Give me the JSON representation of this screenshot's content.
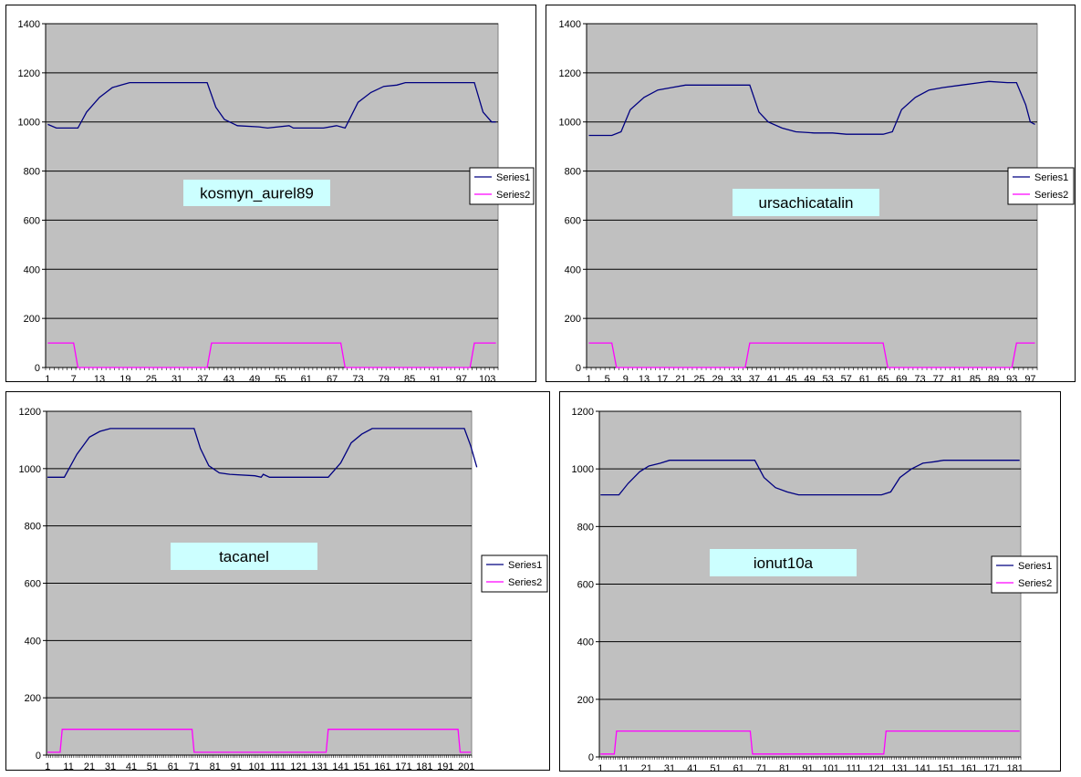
{
  "chart_data": [
    {
      "type": "line",
      "title": "kosmyn_aurel89",
      "ylim": [
        0,
        1400
      ],
      "y_ticks": [
        0,
        200,
        400,
        600,
        800,
        1000,
        1200,
        1400
      ],
      "x_ticks": [
        "1",
        "7",
        "13",
        "19",
        "25",
        "31",
        "37",
        "43",
        "49",
        "55",
        "61",
        "67",
        "73",
        "79",
        "85",
        "91",
        "97",
        "103"
      ],
      "x_count": 105,
      "grid": "horizontal",
      "legend": "right",
      "series": [
        {
          "name": "Series1",
          "color": "#000080",
          "points": [
            [
              1,
              990
            ],
            [
              3,
              975
            ],
            [
              8,
              975
            ],
            [
              10,
              1040
            ],
            [
              13,
              1100
            ],
            [
              16,
              1140
            ],
            [
              18,
              1150
            ],
            [
              20,
              1160
            ],
            [
              38,
              1160
            ],
            [
              40,
              1060
            ],
            [
              42,
              1010
            ],
            [
              45,
              985
            ],
            [
              50,
              980
            ],
            [
              52,
              975
            ],
            [
              57,
              985
            ],
            [
              58,
              975
            ],
            [
              65,
              975
            ],
            [
              68,
              985
            ],
            [
              70,
              975
            ],
            [
              73,
              1080
            ],
            [
              76,
              1120
            ],
            [
              79,
              1145
            ],
            [
              82,
              1150
            ],
            [
              84,
              1160
            ],
            [
              100,
              1160
            ],
            [
              102,
              1040
            ],
            [
              104,
              1000
            ],
            [
              105,
              1000
            ]
          ]
        },
        {
          "name": "Series2",
          "color": "#FF00FF",
          "points": [
            [
              1,
              100
            ],
            [
              7,
              100
            ],
            [
              8,
              0
            ],
            [
              38,
              0
            ],
            [
              39,
              100
            ],
            [
              69,
              100
            ],
            [
              70,
              0
            ],
            [
              99,
              0
            ],
            [
              100,
              100
            ],
            [
              105,
              100
            ]
          ]
        }
      ]
    },
    {
      "type": "line",
      "title": "ursachicatalin",
      "ylim": [
        0,
        1400
      ],
      "y_ticks": [
        0,
        200,
        400,
        600,
        800,
        1000,
        1200,
        1400
      ],
      "x_ticks": [
        "1",
        "5",
        "9",
        "13",
        "17",
        "21",
        "25",
        "29",
        "33",
        "37",
        "41",
        "45",
        "49",
        "53",
        "57",
        "61",
        "65",
        "69",
        "73",
        "77",
        "81",
        "85",
        "89",
        "93",
        "97"
      ],
      "x_count": 98,
      "grid": "horizontal",
      "legend": "right",
      "series": [
        {
          "name": "Series1",
          "color": "#000080",
          "points": [
            [
              1,
              945
            ],
            [
              6,
              945
            ],
            [
              8,
              960
            ],
            [
              10,
              1050
            ],
            [
              13,
              1100
            ],
            [
              16,
              1130
            ],
            [
              19,
              1140
            ],
            [
              22,
              1150
            ],
            [
              36,
              1150
            ],
            [
              38,
              1040
            ],
            [
              40,
              1000
            ],
            [
              43,
              975
            ],
            [
              46,
              960
            ],
            [
              50,
              955
            ],
            [
              54,
              955
            ],
            [
              57,
              950
            ],
            [
              61,
              950
            ],
            [
              65,
              950
            ],
            [
              67,
              960
            ],
            [
              69,
              1050
            ],
            [
              72,
              1100
            ],
            [
              75,
              1130
            ],
            [
              78,
              1140
            ],
            [
              82,
              1150
            ],
            [
              86,
              1160
            ],
            [
              88,
              1165
            ],
            [
              92,
              1160
            ],
            [
              94,
              1160
            ],
            [
              96,
              1070
            ],
            [
              97,
              1000
            ],
            [
              98,
              990
            ]
          ]
        },
        {
          "name": "Series2",
          "color": "#FF00FF",
          "points": [
            [
              1,
              100
            ],
            [
              6,
              100
            ],
            [
              7,
              0
            ],
            [
              35,
              0
            ],
            [
              36,
              100
            ],
            [
              65,
              100
            ],
            [
              66,
              0
            ],
            [
              93,
              0
            ],
            [
              94,
              100
            ],
            [
              98,
              100
            ]
          ]
        }
      ]
    },
    {
      "type": "line",
      "title": "tacanel",
      "ylim": [
        0,
        1200
      ],
      "y_ticks": [
        0,
        200,
        400,
        600,
        800,
        1000,
        1200
      ],
      "x_ticks": [
        "1",
        "11",
        "21",
        "31",
        "41",
        "51",
        "61",
        "71",
        "81",
        "91",
        "101",
        "111",
        "121",
        "131",
        "141",
        "151",
        "161",
        "171",
        "181",
        "191",
        "201"
      ],
      "x_count": 203,
      "grid": "horizontal",
      "legend": "right",
      "series": [
        {
          "name": "Series1",
          "color": "#000080",
          "points": [
            [
              1,
              970
            ],
            [
              9,
              970
            ],
            [
              15,
              1050
            ],
            [
              21,
              1110
            ],
            [
              26,
              1130
            ],
            [
              31,
              1140
            ],
            [
              71,
              1140
            ],
            [
              74,
              1070
            ],
            [
              78,
              1010
            ],
            [
              83,
              985
            ],
            [
              88,
              980
            ],
            [
              100,
              975
            ],
            [
              103,
              970
            ],
            [
              104,
              980
            ],
            [
              107,
              970
            ],
            [
              135,
              970
            ],
            [
              141,
              1020
            ],
            [
              146,
              1090
            ],
            [
              151,
              1120
            ],
            [
              156,
              1140
            ],
            [
              200,
              1140
            ],
            [
              203,
              1080
            ],
            [
              206,
              1005
            ]
          ]
        },
        {
          "name": "Series2",
          "color": "#FF00FF",
          "points": [
            [
              1,
              10
            ],
            [
              7,
              10
            ],
            [
              8,
              90
            ],
            [
              70,
              90
            ],
            [
              71,
              10
            ],
            [
              134,
              10
            ],
            [
              135,
              90
            ],
            [
              197,
              90
            ],
            [
              198,
              10
            ],
            [
              203,
              10
            ]
          ]
        }
      ]
    },
    {
      "type": "line",
      "title": "ionut10a",
      "ylim": [
        0,
        1200
      ],
      "y_ticks": [
        0,
        200,
        400,
        600,
        800,
        1000,
        1200
      ],
      "x_ticks": [
        "1",
        "11",
        "21",
        "31",
        "41",
        "51",
        "61",
        "71",
        "81",
        "91",
        "101",
        "111",
        "121",
        "131",
        "141",
        "151",
        "161",
        "171",
        "181"
      ],
      "x_count": 183,
      "grid": "horizontal",
      "legend": "right",
      "series": [
        {
          "name": "Series1",
          "color": "#000080",
          "points": [
            [
              1,
              910
            ],
            [
              9,
              910
            ],
            [
              13,
              950
            ],
            [
              18,
              990
            ],
            [
              22,
              1010
            ],
            [
              27,
              1020
            ],
            [
              31,
              1030
            ],
            [
              68,
              1030
            ],
            [
              72,
              970
            ],
            [
              77,
              935
            ],
            [
              82,
              920
            ],
            [
              87,
              910
            ],
            [
              123,
              910
            ],
            [
              127,
              920
            ],
            [
              131,
              970
            ],
            [
              136,
              1000
            ],
            [
              141,
              1020
            ],
            [
              146,
              1025
            ],
            [
              150,
              1030
            ],
            [
              183,
              1030
            ]
          ]
        },
        {
          "name": "Series2",
          "color": "#FF00FF",
          "points": [
            [
              1,
              10
            ],
            [
              7,
              10
            ],
            [
              8,
              90
            ],
            [
              66,
              90
            ],
            [
              67,
              10
            ],
            [
              124,
              10
            ],
            [
              125,
              90
            ],
            [
              183,
              90
            ]
          ]
        }
      ]
    }
  ]
}
